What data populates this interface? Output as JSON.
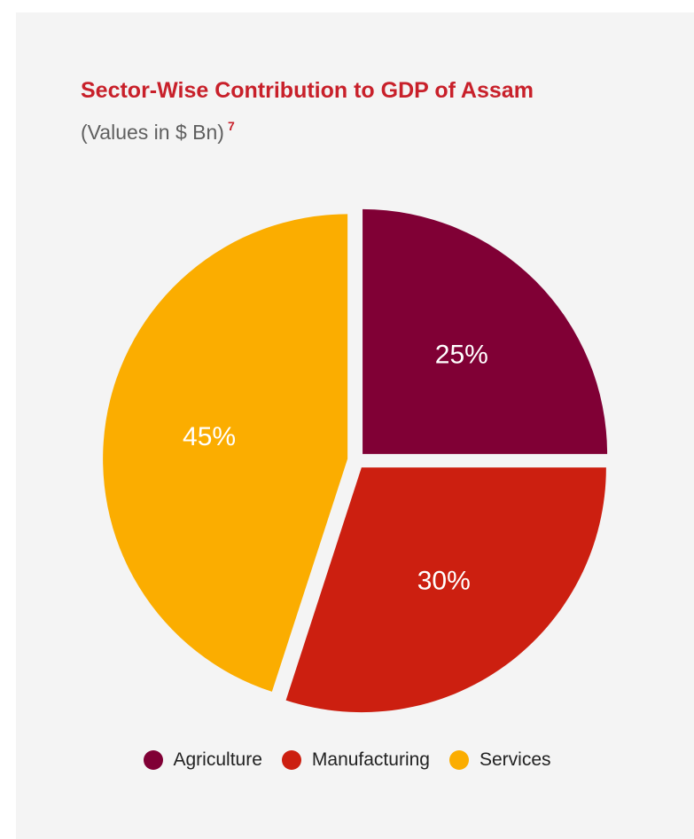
{
  "header": {
    "title": "Sector-Wise Contribution to GDP of Assam",
    "subtitle": "(Values in $ Bn)",
    "footnote": "7"
  },
  "colors": {
    "agriculture": "#800035",
    "manufacturing": "#cc1f10",
    "services": "#fbad00",
    "title": "#c8202a",
    "background": "#f4f4f4"
  },
  "chart_data": {
    "type": "pie",
    "title": "Sector-Wise Contribution to GDP of Assam",
    "subtitle": "(Values in $ Bn)",
    "categories": [
      "Agriculture",
      "Manufacturing",
      "Services"
    ],
    "values": [
      25,
      30,
      45
    ],
    "labels": [
      "25%",
      "30%",
      "45%"
    ],
    "colors": [
      "#800035",
      "#cc1f10",
      "#fbad00"
    ],
    "legend_position": "bottom",
    "exploded": true
  },
  "legend": {
    "items": [
      {
        "label": "Agriculture",
        "icon": "circle-marker"
      },
      {
        "label": "Manufacturing",
        "icon": "circle-marker"
      },
      {
        "label": "Services",
        "icon": "circle-marker"
      }
    ]
  }
}
